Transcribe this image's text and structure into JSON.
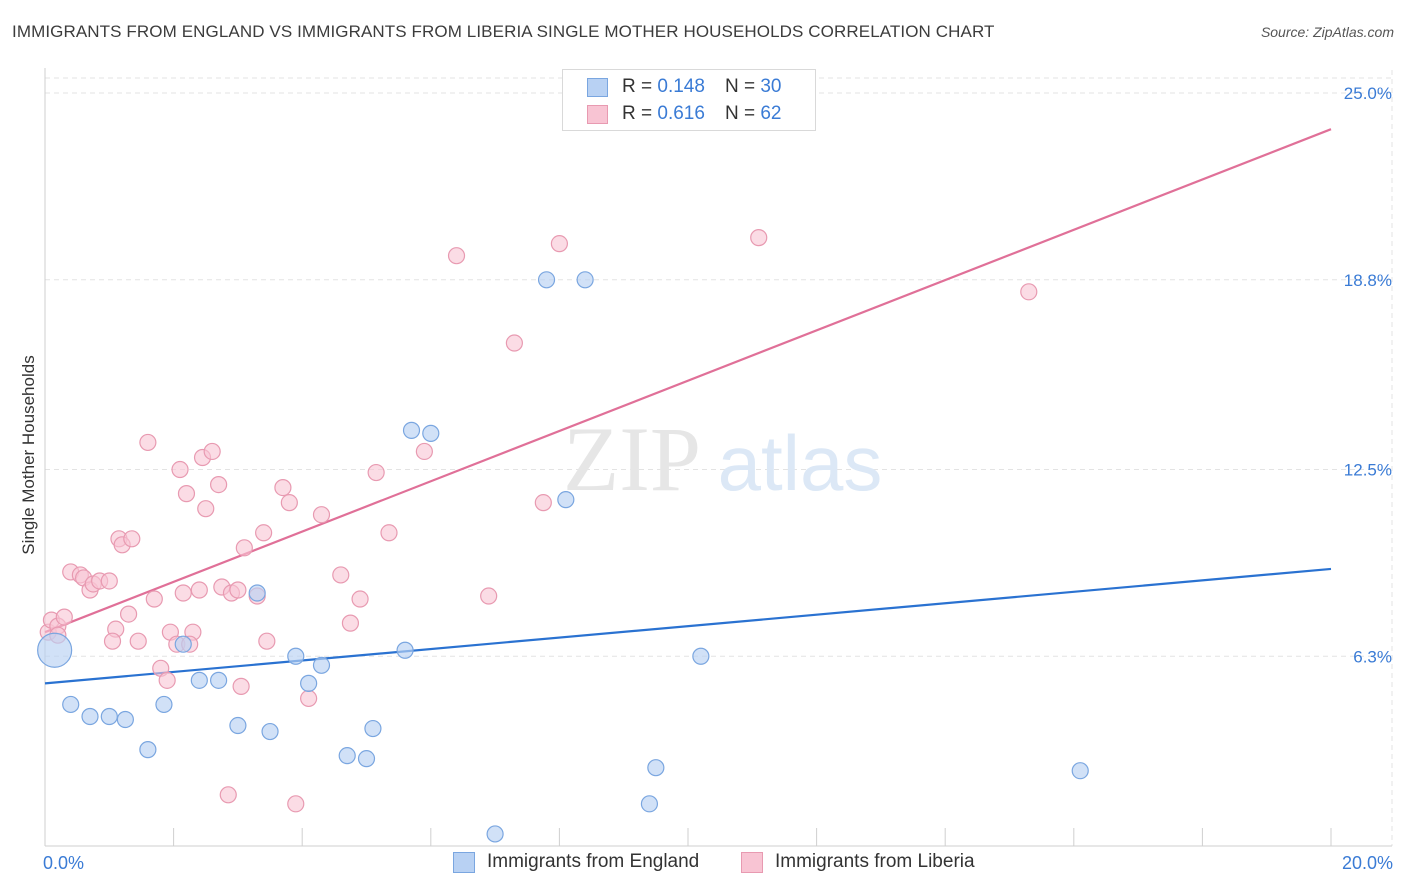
{
  "title": "IMMIGRANTS FROM ENGLAND VS IMMIGRANTS FROM LIBERIA SINGLE MOTHER HOUSEHOLDS CORRELATION CHART",
  "source": "Source: ZipAtlas.com",
  "watermark": {
    "zip": "ZIP",
    "atlas": "atlas"
  },
  "legend": {
    "england": {
      "r_label": "R =",
      "r_value": "0.148",
      "n_label": "N =",
      "n_value": "30"
    },
    "liberia": {
      "r_label": "R =",
      "r_value": "0.616",
      "n_label": "N =",
      "n_value": "62"
    }
  },
  "colors": {
    "england_fill": "#b8d1f3",
    "england_stroke": "#7aa6e0",
    "england_line": "#2a72d1",
    "liberia_fill": "#f8c4d3",
    "liberia_stroke": "#e89ab1",
    "liberia_line": "#e07098",
    "axis_label": "#3a7bd5",
    "grid": "#e3e3e3"
  },
  "chart_data": {
    "type": "scatter",
    "title": "IMMIGRANTS FROM ENGLAND VS IMMIGRANTS FROM LIBERIA SINGLE MOTHER HOUSEHOLDS CORRELATION CHART",
    "xlabel": "",
    "ylabel": "Single Mother Households",
    "xlim": [
      0,
      20
    ],
    "ylim": [
      0,
      25.5
    ],
    "x_tick_labels": [
      "0.0%",
      "20.0%"
    ],
    "y_ticks": [
      6.3,
      12.5,
      18.8,
      25.0
    ],
    "y_tick_labels": [
      "6.3%",
      "12.5%",
      "18.8%",
      "25.0%"
    ],
    "grid": true,
    "legend_position": "top-center",
    "series": [
      {
        "name": "Immigrants from England",
        "r": 0.148,
        "n": 30,
        "trend": [
          [
            0,
            5.4
          ],
          [
            20,
            9.2
          ]
        ],
        "points": [
          [
            0.15,
            6.5,
            "big"
          ],
          [
            0.4,
            4.7
          ],
          [
            0.7,
            4.3
          ],
          [
            1.0,
            4.3
          ],
          [
            1.25,
            4.2
          ],
          [
            1.6,
            3.2
          ],
          [
            1.85,
            4.7
          ],
          [
            2.15,
            6.7
          ],
          [
            2.4,
            5.5
          ],
          [
            2.7,
            5.5
          ],
          [
            3.0,
            4.0
          ],
          [
            3.3,
            8.4
          ],
          [
            3.5,
            3.8
          ],
          [
            3.9,
            6.3
          ],
          [
            4.1,
            5.4
          ],
          [
            4.3,
            6.0
          ],
          [
            4.7,
            3.0
          ],
          [
            5.0,
            2.9
          ],
          [
            5.1,
            3.9
          ],
          [
            5.6,
            6.5
          ],
          [
            5.7,
            13.8
          ],
          [
            6.0,
            13.7
          ],
          [
            7.0,
            0.4
          ],
          [
            7.8,
            18.8
          ],
          [
            8.1,
            11.5
          ],
          [
            8.4,
            18.8
          ],
          [
            9.4,
            1.4
          ],
          [
            9.5,
            2.6
          ],
          [
            10.2,
            6.3
          ],
          [
            16.1,
            2.5
          ]
        ]
      },
      {
        "name": "Immigrants from Liberia",
        "r": 0.616,
        "n": 62,
        "trend": [
          [
            0,
            7.1
          ],
          [
            20,
            23.8
          ]
        ],
        "points": [
          [
            0.05,
            7.1
          ],
          [
            0.1,
            7.5
          ],
          [
            0.2,
            7.3
          ],
          [
            0.3,
            7.6
          ],
          [
            0.4,
            9.1
          ],
          [
            0.55,
            9.0
          ],
          [
            0.6,
            8.9
          ],
          [
            0.7,
            8.5
          ],
          [
            0.75,
            8.7
          ],
          [
            0.85,
            8.8
          ],
          [
            1.0,
            8.8
          ],
          [
            1.1,
            7.2
          ],
          [
            1.05,
            6.8
          ],
          [
            1.15,
            10.2
          ],
          [
            1.2,
            10.0
          ],
          [
            1.3,
            7.7
          ],
          [
            1.35,
            10.2
          ],
          [
            1.45,
            6.8
          ],
          [
            1.6,
            13.4
          ],
          [
            1.7,
            8.2
          ],
          [
            1.8,
            5.9
          ],
          [
            1.9,
            5.5
          ],
          [
            1.95,
            7.1
          ],
          [
            2.05,
            6.7
          ],
          [
            2.1,
            12.5
          ],
          [
            2.15,
            8.4
          ],
          [
            2.2,
            11.7
          ],
          [
            2.3,
            7.1
          ],
          [
            2.4,
            8.5
          ],
          [
            2.45,
            12.9
          ],
          [
            2.5,
            11.2
          ],
          [
            2.6,
            13.1
          ],
          [
            2.7,
            12.0
          ],
          [
            2.75,
            8.6
          ],
          [
            2.85,
            1.7
          ],
          [
            2.9,
            8.4
          ],
          [
            3.0,
            8.5
          ],
          [
            3.05,
            5.3
          ],
          [
            3.1,
            9.9
          ],
          [
            3.3,
            8.3
          ],
          [
            3.4,
            10.4
          ],
          [
            3.45,
            6.8
          ],
          [
            3.7,
            11.9
          ],
          [
            3.8,
            11.4
          ],
          [
            3.9,
            1.4
          ],
          [
            4.1,
            4.9
          ],
          [
            4.3,
            11.0
          ],
          [
            4.6,
            9.0
          ],
          [
            4.75,
            7.4
          ],
          [
            4.9,
            8.2
          ],
          [
            5.15,
            12.4
          ],
          [
            5.35,
            10.4
          ],
          [
            5.9,
            13.1
          ],
          [
            6.4,
            19.6
          ],
          [
            6.9,
            8.3
          ],
          [
            7.3,
            16.7
          ],
          [
            7.75,
            11.4
          ],
          [
            8.0,
            20.0
          ],
          [
            11.1,
            20.2
          ],
          [
            15.3,
            18.4
          ],
          [
            0.2,
            7.0
          ],
          [
            2.25,
            6.7
          ]
        ]
      }
    ]
  },
  "bottom_legend": {
    "england": "Immigrants from England",
    "liberia": "Immigrants from Liberia"
  }
}
